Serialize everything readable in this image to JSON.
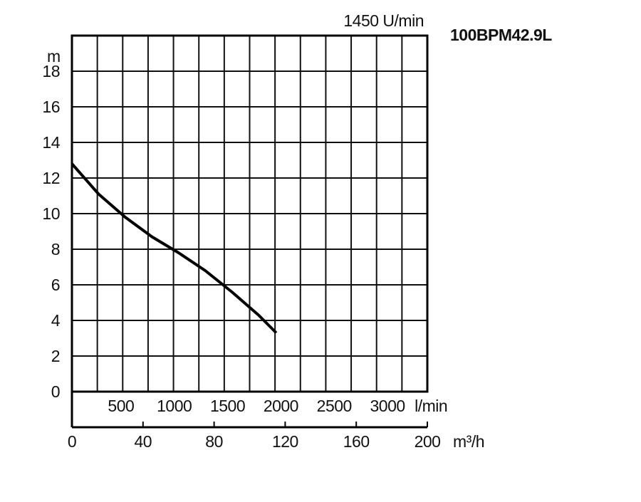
{
  "chart_data": {
    "type": "line",
    "title": "100BPM42.9L",
    "subtitle": "1450 U/min",
    "y_label": "m",
    "x_label": "m³/h",
    "x2_label": "l/min",
    "x": [
      0,
      15,
      30,
      45,
      60,
      75,
      90,
      105,
      115
    ],
    "values": [
      12.8,
      11.1,
      9.8,
      8.7,
      7.8,
      6.8,
      5.6,
      4.3,
      3.3
    ],
    "color": "#000000",
    "xlim": [
      0,
      200
    ],
    "xticks": [
      0,
      40,
      80,
      120,
      160,
      200
    ],
    "ylim": [
      0,
      20
    ],
    "yticks": [
      0,
      2,
      4,
      6,
      8,
      10,
      12,
      14,
      16,
      18
    ],
    "x2lim": [
      0,
      3333.33
    ],
    "x2ticks": [
      500,
      1000,
      1500,
      2000,
      2500,
      3000
    ],
    "grid": true
  }
}
